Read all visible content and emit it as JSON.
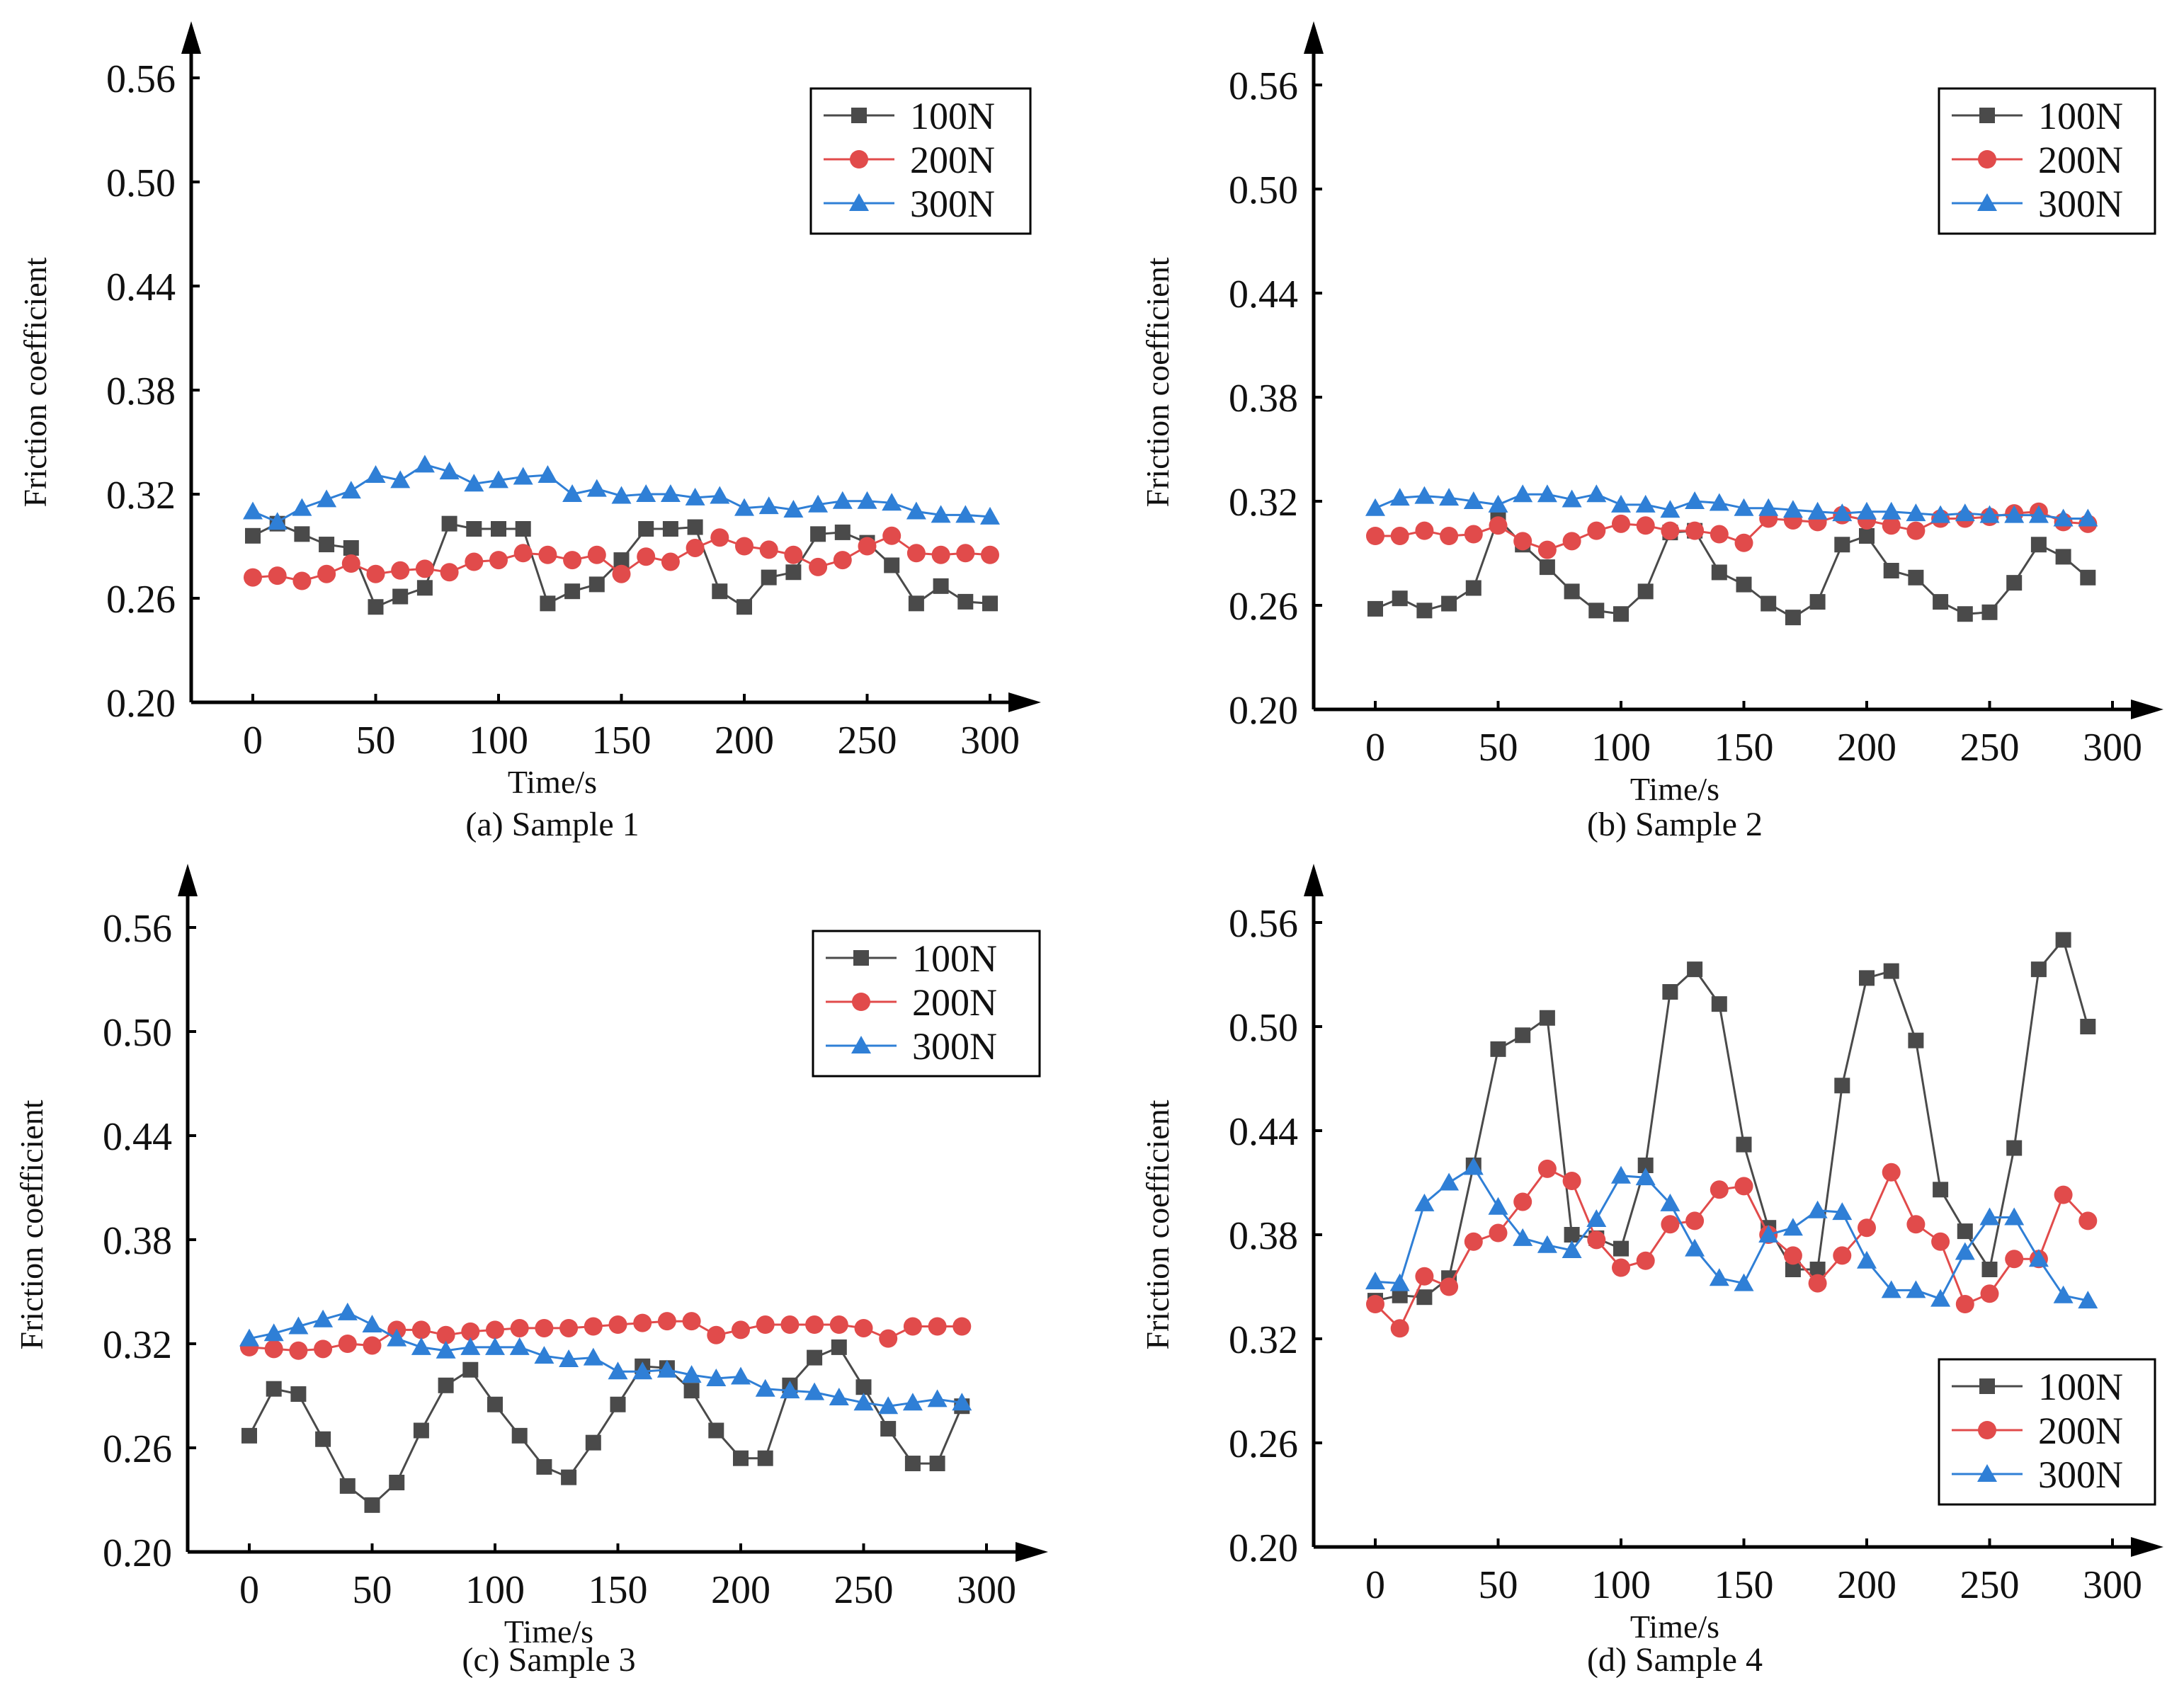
{
  "legend_position": "top-right",
  "colors": {
    "s100": "#4a4a4a",
    "s200": "#e14b4b",
    "s300": "#2f7fd6"
  },
  "chart_data": [
    {
      "type": "line",
      "caption": "(a) Sample 1",
      "xlabel": "Time/s",
      "ylabel": "Friction coefficient",
      "xticks": [
        "0",
        "50",
        "100",
        "150",
        "200",
        "250",
        "300"
      ],
      "yticks": [
        "0.20",
        "0.26",
        "0.32",
        "0.38",
        "0.44",
        "0.50",
        "0.56"
      ],
      "xlim": [
        -25,
        320
      ],
      "ylim": [
        0.2,
        0.6
      ],
      "legend": {
        "position": "top-right",
        "entries": [
          "100N",
          "200N",
          "300N"
        ]
      },
      "x": [
        0,
        10,
        20,
        30,
        40,
        50,
        60,
        70,
        80,
        90,
        100,
        110,
        120,
        130,
        140,
        150,
        160,
        170,
        180,
        190,
        200,
        210,
        220,
        230,
        240,
        250,
        260,
        270,
        280,
        290,
        300
      ],
      "series": [
        {
          "name": "100N",
          "marker": "square",
          "values": [
            0.296,
            0.303,
            0.297,
            0.291,
            0.289,
            0.255,
            0.261,
            0.266,
            0.303,
            0.3,
            0.3,
            0.3,
            0.257,
            0.264,
            0.268,
            0.282,
            0.3,
            0.3,
            0.301,
            0.264,
            0.255,
            0.272,
            0.275,
            0.297,
            0.298,
            0.292,
            0.279,
            0.257,
            0.267,
            0.258,
            0.257
          ]
        },
        {
          "name": "200N",
          "marker": "circle",
          "values": [
            0.272,
            0.273,
            0.27,
            0.274,
            0.28,
            0.274,
            0.276,
            0.277,
            0.275,
            0.281,
            0.282,
            0.286,
            0.285,
            0.282,
            0.285,
            0.274,
            0.284,
            0.281,
            0.289,
            0.295,
            0.29,
            0.288,
            0.285,
            0.278,
            0.282,
            0.29,
            0.296,
            0.286,
            0.285,
            0.286,
            0.285
          ]
        },
        {
          "name": "300N",
          "marker": "triangle",
          "values": [
            0.31,
            0.304,
            0.312,
            0.317,
            0.322,
            0.331,
            0.328,
            0.337,
            0.333,
            0.326,
            0.328,
            0.33,
            0.331,
            0.32,
            0.323,
            0.319,
            0.32,
            0.32,
            0.318,
            0.319,
            0.312,
            0.313,
            0.311,
            0.314,
            0.316,
            0.316,
            0.315,
            0.31,
            0.308,
            0.308,
            0.307
          ]
        }
      ]
    },
    {
      "type": "line",
      "caption": "(b) Sample 2",
      "xlabel": "Time/s",
      "ylabel": "Friction coefficient",
      "xticks": [
        "0",
        "50",
        "100",
        "150",
        "200",
        "250",
        "300"
      ],
      "yticks": [
        "0.20",
        "0.26",
        "0.32",
        "0.38",
        "0.44",
        "0.50",
        "0.56"
      ],
      "xlim": [
        -25,
        320
      ],
      "ylim": [
        0.2,
        0.6
      ],
      "legend": {
        "position": "top-right",
        "entries": [
          "100N",
          "200N",
          "300N"
        ]
      },
      "x": [
        0,
        10,
        20,
        30,
        40,
        50,
        60,
        70,
        80,
        90,
        100,
        110,
        120,
        130,
        140,
        150,
        160,
        170,
        180,
        190,
        200,
        210,
        220,
        230,
        240,
        250,
        260,
        270,
        280,
        290
      ],
      "series": [
        {
          "name": "100N",
          "marker": "square",
          "values": [
            0.258,
            0.264,
            0.257,
            0.261,
            0.27,
            0.31,
            0.295,
            0.282,
            0.268,
            0.257,
            0.255,
            0.268,
            0.302,
            0.303,
            0.279,
            0.272,
            0.261,
            0.253,
            0.262,
            0.295,
            0.3,
            0.28,
            0.276,
            0.262,
            0.255,
            0.256,
            0.273,
            0.295,
            0.288,
            0.276
          ]
        },
        {
          "name": "200N",
          "marker": "circle",
          "values": [
            0.3,
            0.3,
            0.303,
            0.3,
            0.301,
            0.306,
            0.297,
            0.292,
            0.297,
            0.303,
            0.307,
            0.306,
            0.303,
            0.303,
            0.301,
            0.296,
            0.31,
            0.309,
            0.308,
            0.312,
            0.309,
            0.306,
            0.303,
            0.31,
            0.31,
            0.311,
            0.313,
            0.314,
            0.308,
            0.307
          ]
        },
        {
          "name": "300N",
          "marker": "triangle",
          "values": [
            0.316,
            0.322,
            0.323,
            0.322,
            0.32,
            0.318,
            0.324,
            0.324,
            0.321,
            0.324,
            0.318,
            0.318,
            0.315,
            0.32,
            0.319,
            0.316,
            0.316,
            0.315,
            0.314,
            0.313,
            0.314,
            0.314,
            0.313,
            0.312,
            0.313,
            0.312,
            0.312,
            0.312,
            0.31,
            0.31
          ]
        }
      ]
    },
    {
      "type": "line",
      "caption": "(c) Sample 3",
      "xlabel": "Time/s",
      "ylabel": "Friction coefficient",
      "xticks": [
        "0",
        "50",
        "100",
        "150",
        "200",
        "250",
        "300"
      ],
      "yticks": [
        "0.20",
        "0.26",
        "0.32",
        "0.38",
        "0.44",
        "0.50",
        "0.56"
      ],
      "xlim": [
        -25,
        320
      ],
      "ylim": [
        0.2,
        0.6
      ],
      "legend": {
        "position": "top-right",
        "entries": [
          "100N",
          "200N",
          "300N"
        ]
      },
      "x": [
        0,
        10,
        20,
        30,
        40,
        50,
        60,
        70,
        80,
        90,
        100,
        110,
        120,
        130,
        140,
        150,
        160,
        170,
        180,
        190,
        200,
        210,
        220,
        230,
        240,
        250,
        260,
        270,
        280,
        290
      ],
      "series": [
        {
          "name": "100N",
          "marker": "square",
          "values": [
            0.267,
            0.294,
            0.291,
            0.265,
            0.238,
            0.227,
            0.24,
            0.27,
            0.296,
            0.305,
            0.285,
            0.267,
            0.249,
            0.243,
            0.263,
            0.285,
            0.307,
            0.306,
            0.293,
            0.27,
            0.254,
            0.254,
            0.296,
            0.312,
            0.318,
            0.295,
            0.271,
            0.251,
            0.251,
            0.284
          ]
        },
        {
          "name": "200N",
          "marker": "circle",
          "values": [
            0.318,
            0.317,
            0.316,
            0.317,
            0.32,
            0.319,
            0.328,
            0.328,
            0.325,
            0.327,
            0.328,
            0.329,
            0.329,
            0.329,
            0.33,
            0.331,
            0.332,
            0.333,
            0.333,
            0.325,
            0.328,
            0.331,
            0.331,
            0.331,
            0.331,
            0.329,
            0.323,
            0.33,
            0.33,
            0.33
          ]
        },
        {
          "name": "300N",
          "marker": "triangle",
          "values": [
            0.323,
            0.326,
            0.33,
            0.334,
            0.338,
            0.331,
            0.323,
            0.318,
            0.316,
            0.318,
            0.318,
            0.318,
            0.313,
            0.311,
            0.312,
            0.304,
            0.304,
            0.305,
            0.302,
            0.3,
            0.301,
            0.294,
            0.293,
            0.292,
            0.289,
            0.286,
            0.284,
            0.286,
            0.288,
            0.286
          ]
        }
      ]
    },
    {
      "type": "line",
      "caption": "(d) Sample 4",
      "xlabel": "Time/s",
      "ylabel": "Friction coefficient",
      "xticks": [
        "0",
        "50",
        "100",
        "150",
        "200",
        "250",
        "300"
      ],
      "yticks": [
        "0.20",
        "0.26",
        "0.32",
        "0.38",
        "0.44",
        "0.50",
        "0.56"
      ],
      "xlim": [
        -25,
        320
      ],
      "ylim": [
        0.2,
        0.6
      ],
      "legend": {
        "position": "bottom-right",
        "entries": [
          "100N",
          "200N",
          "300N"
        ]
      },
      "x": [
        0,
        10,
        20,
        30,
        40,
        50,
        60,
        70,
        80,
        90,
        100,
        110,
        120,
        130,
        140,
        150,
        160,
        170,
        180,
        190,
        200,
        210,
        220,
        230,
        240,
        250,
        260,
        270,
        280,
        290
      ],
      "series": [
        {
          "name": "100N",
          "marker": "square",
          "values": [
            0.342,
            0.345,
            0.344,
            0.355,
            0.42,
            0.487,
            0.495,
            0.505,
            0.38,
            0.378,
            0.372,
            0.42,
            0.52,
            0.533,
            0.513,
            0.432,
            0.384,
            0.36,
            0.36,
            0.466,
            0.528,
            0.532,
            0.492,
            0.406,
            0.382,
            0.36,
            0.43,
            0.533,
            0.55,
            0.5
          ]
        },
        {
          "name": "200N",
          "marker": "circle",
          "values": [
            0.34,
            0.326,
            0.356,
            0.35,
            0.376,
            0.381,
            0.399,
            0.418,
            0.411,
            0.377,
            0.361,
            0.365,
            0.386,
            0.388,
            0.406,
            0.408,
            0.38,
            0.368,
            0.352,
            0.368,
            0.384,
            0.416,
            0.386,
            0.376,
            0.34,
            0.346,
            0.366,
            0.366,
            0.403,
            0.388
          ]
        },
        {
          "name": "300N",
          "marker": "triangle",
          "values": [
            0.353,
            0.352,
            0.398,
            0.41,
            0.419,
            0.396,
            0.378,
            0.374,
            0.371,
            0.389,
            0.414,
            0.413,
            0.398,
            0.372,
            0.355,
            0.352,
            0.38,
            0.384,
            0.394,
            0.393,
            0.365,
            0.348,
            0.348,
            0.343,
            0.37,
            0.39,
            0.39,
            0.366,
            0.345,
            0.342
          ]
        }
      ]
    }
  ]
}
